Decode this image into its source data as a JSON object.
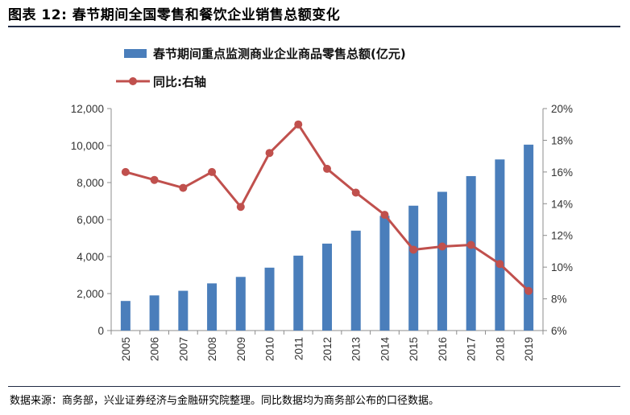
{
  "figure": {
    "title": "图表 12: 春节期间全国零售和餐饮企业销售总额变化",
    "source": "数据来源：商务部，兴业证券经济与金融研究院整理。同比数据均为商务部公布的口径数据。"
  },
  "colors": {
    "bar": "#4a7ebb",
    "line": "#c0504d"
  },
  "chart_data": {
    "type": "bar",
    "categories": [
      "2005",
      "2006",
      "2007",
      "2008",
      "2009",
      "2010",
      "2011",
      "2012",
      "2013",
      "2014",
      "2015",
      "2016",
      "2017",
      "2018",
      "2019"
    ],
    "series": [
      {
        "name": "春节期间重点监测商业企业商品零售总额(亿元)",
        "type": "bar",
        "axis": "left",
        "values": [
          1600,
          1900,
          2150,
          2550,
          2900,
          3400,
          4050,
          4700,
          5400,
          6200,
          6750,
          7500,
          8350,
          9250,
          10050
        ]
      },
      {
        "name": "同比:右轴",
        "type": "line",
        "axis": "right",
        "values": [
          16.0,
          15.5,
          15.0,
          16.0,
          13.8,
          17.2,
          19.0,
          16.2,
          14.7,
          13.3,
          11.1,
          11.3,
          11.4,
          10.2,
          8.5
        ]
      }
    ],
    "y_left": {
      "lim": [
        0,
        12000
      ],
      "ticks": [
        "0",
        "2,000",
        "4,000",
        "6,000",
        "8,000",
        "10,000",
        "12,000"
      ]
    },
    "y_right": {
      "lim": [
        6,
        20
      ],
      "ticks": [
        "6%",
        "8%",
        "10%",
        "12%",
        "14%",
        "16%",
        "18%",
        "20%"
      ]
    },
    "grid": false,
    "legend_position": "top-left"
  }
}
